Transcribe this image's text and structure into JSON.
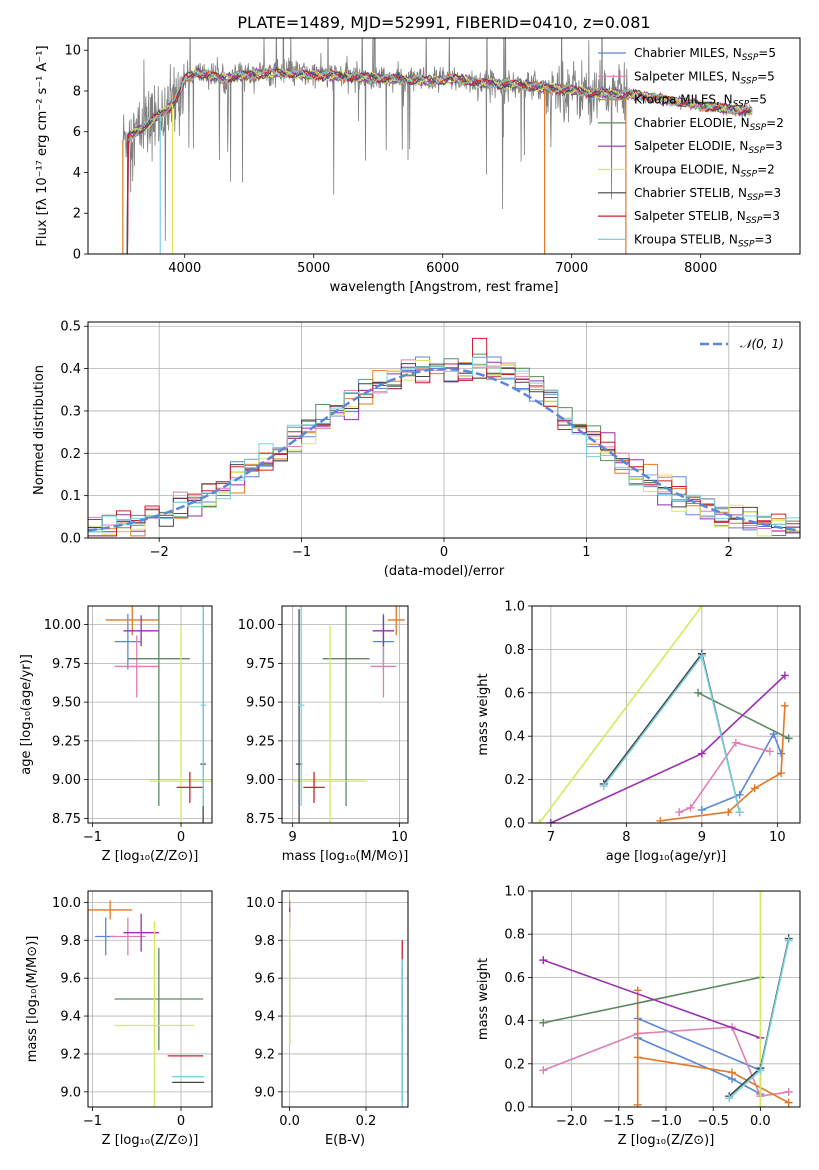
{
  "figure": {
    "title": "PLATE=1489, MJD=52991, FIBERID=0410, z=0.081"
  },
  "colors": {
    "chabrier_miles": "#5b87d8",
    "salpeter_miles": "#e07fb4",
    "kroupa_miles": "#e07a28",
    "chabrier_elodie": "#5d8a63",
    "salpeter_elodie": "#9a2fb0",
    "kroupa_elodie": "#d9e85a",
    "chabrier_stelib": "#454545",
    "salpeter_stelib": "#c8202c",
    "kroupa_stelib": "#78d2dc",
    "data": "#7f7f7f",
    "grid": "#b0b0b0"
  },
  "chart_data": [
    {
      "id": "spectrum",
      "type": "line",
      "title": "PLATE=1489, MJD=52991, FIBERID=0410, z=0.081",
      "xlabel": "wavelength [Angstrom, rest frame]",
      "ylabel": "Flux [fλ 10⁻¹⁷ erg cm⁻² s⁻¹ A⁻¹]",
      "xlim": [
        3250,
        8770
      ],
      "ylim": [
        0,
        10.6
      ],
      "xticks": [
        4000,
        5000,
        6000,
        7000,
        8000
      ],
      "yticks": [
        0,
        2,
        4,
        6,
        8,
        10
      ],
      "grid": false,
      "legend_position": "right",
      "legend": [
        "Chabrier MILES, N_SSP=5",
        "Salpeter MILES, N_SSP=5",
        "Kroupa MILES, N_SSP=5",
        "Chabrier ELODIE, N_SSP=2",
        "Salpeter ELODIE, N_SSP=3",
        "Kroupa ELODIE, N_SSP=2",
        "Chabrier STELIB, N_SSP=3",
        "Salpeter STELIB, N_SSP=3",
        "Kroupa STELIB, N_SSP=3"
      ],
      "continuum": {
        "x": [
          3520,
          3600,
          3700,
          3800,
          3900,
          3950,
          4000,
          4100,
          4300,
          4500,
          4700,
          5000,
          5300,
          5600,
          5900,
          6100,
          6300,
          6600,
          6900,
          7200,
          7500,
          7800,
          8100,
          8400
        ],
        "y": [
          5.6,
          5.9,
          6.3,
          6.8,
          7.3,
          7.8,
          8.6,
          8.9,
          8.6,
          8.8,
          8.9,
          8.8,
          8.7,
          8.6,
          8.5,
          8.6,
          8.4,
          8.3,
          8.1,
          7.9,
          7.8,
          7.5,
          7.2,
          7.0
        ]
      }
    },
    {
      "id": "residuals",
      "type": "line",
      "xlabel": "(data-model)/error",
      "ylabel": "Normed distribution",
      "xlim": [
        -2.5,
        2.5
      ],
      "ylim": [
        0,
        0.51
      ],
      "xticks": [
        -2,
        -1,
        0,
        1,
        2
      ],
      "yticks": [
        0.0,
        0.1,
        0.2,
        0.3,
        0.4,
        0.5
      ],
      "grid": true,
      "legend_position": "top-right",
      "legend": [
        "𝒩(0, 1)"
      ],
      "gaussian_reference": {
        "mean": 0,
        "sigma": 1
      },
      "bin_width": 0.1
    },
    {
      "id": "age_vs_z",
      "type": "scatter",
      "xlabel": "Z [log₁₀(Z/Z⊙)]",
      "ylabel": "age [log₁₀(age/yr)]",
      "xlim": [
        -1.05,
        0.35
      ],
      "ylim": [
        8.72,
        10.12
      ],
      "xticks": [
        -1,
        0
      ],
      "yticks": [
        8.75,
        9.0,
        9.25,
        9.5,
        9.75,
        10.0
      ],
      "grid": true,
      "points": [
        {
          "series": "Chabrier MILES",
          "x": -0.6,
          "y": 9.89,
          "xerr": 0.15,
          "yerr": 0.18
        },
        {
          "series": "Salpeter MILES",
          "x": -0.5,
          "y": 9.73,
          "xerr": 0.25,
          "yerr": 0.2
        },
        {
          "series": "Kroupa MILES",
          "x": -0.55,
          "y": 10.03,
          "xerr": 0.3,
          "yerr": 0.1
        },
        {
          "series": "Chabrier ELODIE",
          "x": -0.25,
          "y": 9.78,
          "xerr": 0.35,
          "yerr": 0.95
        },
        {
          "series": "Salpeter ELODIE",
          "x": -0.45,
          "y": 9.96,
          "xerr": 0.2,
          "yerr": 0.1
        },
        {
          "series": "Kroupa ELODIE",
          "x": 0.0,
          "y": 8.99,
          "xerr": 0.35,
          "yerr": 1.0
        },
        {
          "series": "Chabrier STELIB",
          "x": 0.25,
          "y": 9.1,
          "xerr": 0.03,
          "yerr": 1.0
        },
        {
          "series": "Salpeter STELIB",
          "x": 0.1,
          "y": 8.95,
          "xerr": 0.15,
          "yerr": 0.1
        },
        {
          "series": "Kroupa STELIB",
          "x": 0.25,
          "y": 9.48,
          "xerr": 0.03,
          "yerr": 0.65
        }
      ]
    },
    {
      "id": "age_vs_mass",
      "type": "scatter",
      "xlabel": "mass [log₁₀(M/M⊙)]",
      "xlim": [
        8.9,
        10.08
      ],
      "ylim": [
        8.72,
        10.12
      ],
      "xticks": [
        9,
        10
      ],
      "yticks": [
        8.75,
        9.0,
        9.25,
        9.5,
        9.75,
        10.0
      ],
      "grid": true,
      "points": [
        {
          "series": "Chabrier MILES",
          "x": 9.85,
          "y": 9.89,
          "xerr": 0.1,
          "yerr": 0.18
        },
        {
          "series": "Salpeter MILES",
          "x": 9.85,
          "y": 9.73,
          "xerr": 0.12,
          "yerr": 0.2
        },
        {
          "series": "Kroupa MILES",
          "x": 9.97,
          "y": 10.03,
          "xerr": 0.08,
          "yerr": 0.1
        },
        {
          "series": "Chabrier ELODIE",
          "x": 9.5,
          "y": 9.78,
          "xerr": 0.22,
          "yerr": 0.95
        },
        {
          "series": "Salpeter ELODIE",
          "x": 9.85,
          "y": 9.96,
          "xerr": 0.1,
          "yerr": 0.1
        },
        {
          "series": "Kroupa ELODIE",
          "x": 9.35,
          "y": 8.99,
          "xerr": 0.35,
          "yerr": 1.0
        },
        {
          "series": "Chabrier STELIB",
          "x": 9.06,
          "y": 9.1,
          "xerr": 0.03,
          "yerr": 1.0
        },
        {
          "series": "Salpeter STELIB",
          "x": 9.2,
          "y": 8.95,
          "xerr": 0.1,
          "yerr": 0.1
        },
        {
          "series": "Kroupa STELIB",
          "x": 9.08,
          "y": 9.48,
          "xerr": 0.03,
          "yerr": 0.65
        }
      ]
    },
    {
      "id": "weight_vs_age",
      "type": "line",
      "xlabel": "age [log₁₀(age/yr)]",
      "ylabel": "mass weight",
      "xlim": [
        6.75,
        10.3
      ],
      "ylim": [
        0,
        1.0
      ],
      "xticks": [
        7,
        8,
        9,
        10
      ],
      "yticks": [
        0.0,
        0.2,
        0.4,
        0.6,
        0.8,
        1.0
      ],
      "grid": true,
      "series": [
        {
          "name": "Chabrier MILES",
          "x": [
            9.0,
            9.5,
            9.95,
            10.05
          ],
          "y": [
            0.06,
            0.13,
            0.41,
            0.32
          ]
        },
        {
          "name": "Salpeter MILES",
          "x": [
            8.7,
            8.85,
            9.45,
            9.9
          ],
          "y": [
            0.05,
            0.07,
            0.37,
            0.33
          ]
        },
        {
          "name": "Kroupa MILES",
          "x": [
            8.45,
            9.35,
            9.7,
            10.05,
            10.1
          ],
          "y": [
            0.01,
            0.05,
            0.16,
            0.23,
            0.54
          ]
        },
        {
          "name": "Chabrier ELODIE",
          "x": [
            8.95,
            10.15
          ],
          "y": [
            0.6,
            0.39
          ]
        },
        {
          "name": "Salpeter ELODIE",
          "x": [
            7.0,
            9.0,
            10.1
          ],
          "y": [
            0.0,
            0.32,
            0.68
          ]
        },
        {
          "name": "Kroupa ELODIE",
          "x": [
            6.85,
            9.0
          ],
          "y": [
            0.0,
            1.0
          ]
        },
        {
          "name": "Chabrier STELIB",
          "x": [
            7.7,
            9.0,
            9.5
          ],
          "y": [
            0.18,
            0.78,
            0.05
          ]
        },
        {
          "name": "Kroupa STELIB",
          "x": [
            7.7,
            9.0,
            9.5
          ],
          "y": [
            0.17,
            0.77,
            0.05
          ]
        }
      ]
    },
    {
      "id": "mass_vs_z",
      "type": "scatter",
      "xlabel": "Z [log₁₀(Z/Z⊙)]",
      "ylabel": "mass [log₁₀(M/M⊙)]",
      "xlim": [
        -1.05,
        0.35
      ],
      "ylim": [
        8.92,
        10.06
      ],
      "xticks": [
        -1,
        0
      ],
      "yticks": [
        9.0,
        9.2,
        9.4,
        9.6,
        9.8,
        10.0
      ],
      "grid": true,
      "points": [
        {
          "series": "Chabrier MILES",
          "x": -0.85,
          "y": 9.82,
          "xerr": 0.12,
          "yerr": 0.1
        },
        {
          "series": "Salpeter MILES",
          "x": -0.6,
          "y": 9.82,
          "xerr": 0.2,
          "yerr": 0.1
        },
        {
          "series": "Kroupa MILES",
          "x": -0.8,
          "y": 9.96,
          "xerr": 0.25,
          "yerr": 0.05
        },
        {
          "series": "Chabrier ELODIE",
          "x": -0.25,
          "y": 9.49,
          "xerr": 0.5,
          "yerr": 0.27
        },
        {
          "series": "Salpeter ELODIE",
          "x": -0.45,
          "y": 9.84,
          "xerr": 0.2,
          "yerr": 0.1
        },
        {
          "series": "Kroupa ELODIE",
          "x": -0.3,
          "y": 9.35,
          "xerr": 0.45,
          "yerr": 0.55
        },
        {
          "series": "Chabrier STELIB",
          "x": 0.08,
          "y": 9.05,
          "xerr": 0.18,
          "yerr": 0.0
        },
        {
          "series": "Salpeter STELIB",
          "x": 0.05,
          "y": 9.19,
          "xerr": 0.2,
          "yerr": 0.0
        },
        {
          "series": "Kroupa STELIB",
          "x": 0.08,
          "y": 9.08,
          "xerr": 0.18,
          "yerr": 0.0
        }
      ]
    },
    {
      "id": "mass_vs_ebv",
      "type": "scatter",
      "xlabel": "E(B-V)",
      "xlim": [
        -0.02,
        0.31
      ],
      "ylim": [
        8.92,
        10.06
      ],
      "xticks": [
        0.0,
        0.2
      ],
      "yticks": [
        9.0,
        9.2,
        9.4,
        9.6,
        9.8,
        10.0
      ],
      "grid": true,
      "points": [
        {
          "series": "Chabrier MILES",
          "x": 0.0,
          "y": 9.95,
          "yerr": 0.05
        },
        {
          "series": "Salpeter MILES",
          "x": 0.0,
          "y": 9.9,
          "yerr": 0.05
        },
        {
          "series": "Kroupa MILES",
          "x": 0.0,
          "y": 9.97,
          "yerr": 0.04
        },
        {
          "series": "Chabrier ELODIE",
          "x": 0.0,
          "y": 9.5,
          "yerr": 0.25
        },
        {
          "series": "Salpeter ELODIE",
          "x": 0.0,
          "y": 9.92,
          "yerr": 0.05
        },
        {
          "series": "Kroupa ELODIE",
          "x": 0.0,
          "y": 9.6,
          "yerr": 0.35
        },
        {
          "series": "Chabrier STELIB",
          "x": 0.295,
          "y": 9.3,
          "yerr": 0.35
        },
        {
          "series": "Salpeter STELIB",
          "x": 0.295,
          "y": 9.55,
          "yerr": 0.25
        },
        {
          "series": "Kroupa STELIB",
          "x": 0.295,
          "y": 9.3,
          "yerr": 0.4
        }
      ]
    },
    {
      "id": "weight_vs_z",
      "type": "line",
      "xlabel": "Z [log₁₀(Z/Z⊙)]",
      "ylabel": "mass weight",
      "xlim": [
        -2.42,
        0.42
      ],
      "ylim": [
        0,
        1.0
      ],
      "xticks": [
        -2.0,
        -1.5,
        -1.0,
        -0.5,
        0.0
      ],
      "yticks": [
        0.0,
        0.2,
        0.4,
        0.6,
        0.8,
        1.0
      ],
      "grid": true,
      "series": [
        {
          "name": "Chabrier MILES",
          "x": [
            -1.3,
            -0.3,
            0.0,
            0.0,
            -1.3
          ],
          "y": [
            0.32,
            0.13,
            0.06,
            0.17,
            0.41
          ]
        },
        {
          "name": "Salpeter MILES",
          "x": [
            -2.3,
            -1.3,
            -0.3,
            0.0,
            0.3
          ],
          "y": [
            0.17,
            0.34,
            0.37,
            0.05,
            0.07
          ]
        },
        {
          "name": "Kroupa MILES",
          "x": [
            -1.3,
            -1.3,
            -1.3,
            -0.3,
            0.3
          ],
          "y": [
            0.54,
            0.01,
            0.23,
            0.16,
            0.02
          ]
        },
        {
          "name": "Chabrier ELODIE",
          "x": [
            -2.3,
            0.0
          ],
          "y": [
            0.39,
            0.6
          ]
        },
        {
          "name": "Salpeter ELODIE",
          "x": [
            -2.3,
            0.0
          ],
          "y": [
            0.68,
            0.32
          ]
        },
        {
          "name": "Kroupa ELODIE",
          "x": [
            0.0,
            0.0
          ],
          "y": [
            0.0,
            1.0
          ]
        },
        {
          "name": "Chabrier STELIB",
          "x": [
            -0.33,
            0.0,
            0.3
          ],
          "y": [
            0.05,
            0.18,
            0.78
          ]
        },
        {
          "name": "Kroupa STELIB",
          "x": [
            -0.33,
            0.0,
            0.3
          ],
          "y": [
            0.04,
            0.17,
            0.77
          ]
        }
      ]
    }
  ]
}
